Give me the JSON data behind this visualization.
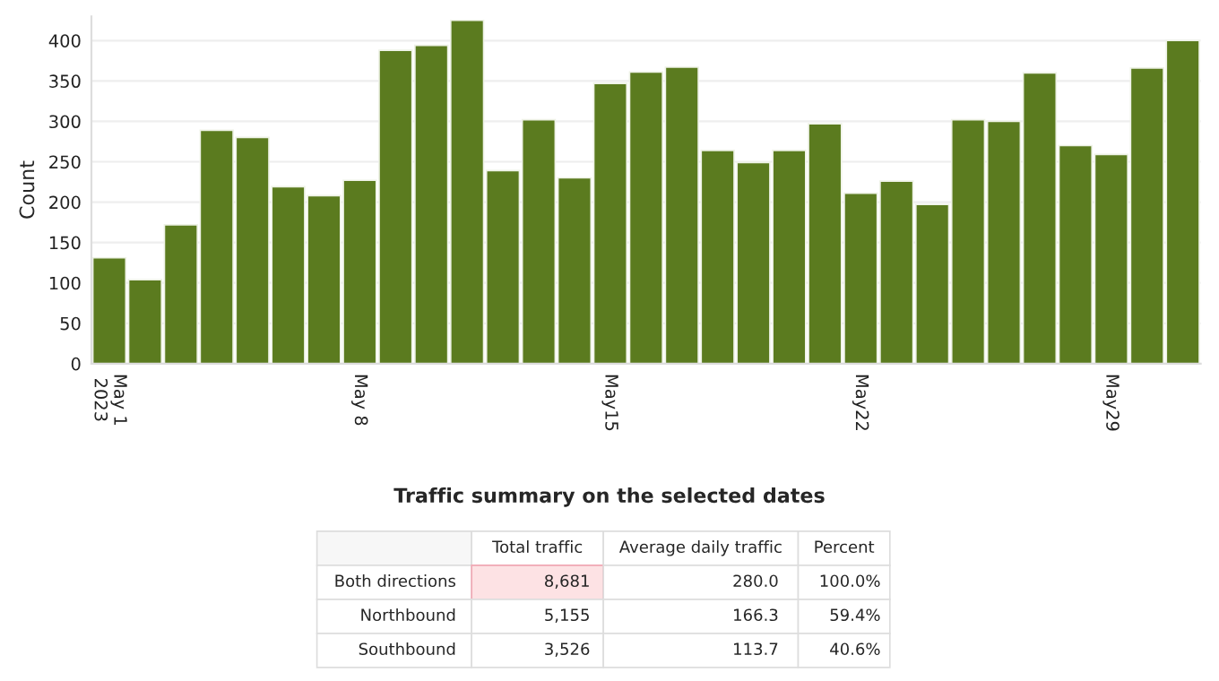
{
  "chart_data": [
    {
      "type": "bar",
      "ylabel": "Count",
      "color": "#5b7b1f",
      "x": [
        "2023-05-01",
        "2023-05-02",
        "2023-05-03",
        "2023-05-04",
        "2023-05-05",
        "2023-05-06",
        "2023-05-07",
        "2023-05-08",
        "2023-05-09",
        "2023-05-10",
        "2023-05-11",
        "2023-05-12",
        "2023-05-13",
        "2023-05-14",
        "2023-05-15",
        "2023-05-16",
        "2023-05-17",
        "2023-05-18",
        "2023-05-19",
        "2023-05-20",
        "2023-05-21",
        "2023-05-22",
        "2023-05-23",
        "2023-05-24",
        "2023-05-25",
        "2023-05-26",
        "2023-05-27",
        "2023-05-28",
        "2023-05-29",
        "2023-05-30",
        "2023-05-31"
      ],
      "values": [
        131,
        104,
        172,
        289,
        280,
        219,
        208,
        227,
        388,
        394,
        425,
        239,
        302,
        230,
        347,
        361,
        367,
        264,
        249,
        264,
        297,
        211,
        226,
        197,
        302,
        300,
        360,
        270,
        259,
        366,
        400
      ],
      "xlim": [
        "2023-04-30T12:00",
        "2023-05-31T12:00"
      ],
      "xticks": [
        {
          "value": "2023-05-01",
          "label": "May 1\n2023"
        },
        {
          "value": "2023-05-08",
          "label": "May 8"
        },
        {
          "value": "2023-05-15",
          "label": "May15"
        },
        {
          "value": "2023-05-22",
          "label": "May22"
        },
        {
          "value": "2023-05-29",
          "label": "May29"
        }
      ],
      "ylim": [
        0,
        430
      ],
      "yticks": [
        0,
        50,
        100,
        150,
        200,
        250,
        300,
        350,
        400
      ],
      "grid": "y"
    },
    {
      "type": "other",
      "title": "Traffic summary on the selected dates",
      "categories": [
        null,
        "Total traffic",
        "Average daily traffic",
        "Percent"
      ],
      "y_categories": [
        "Both directions",
        "Northbound",
        "Southbound"
      ],
      "cell_labels": [
        [
          "8,681",
          "280.0",
          "100.0%"
        ],
        [
          "5,155",
          "166.3",
          "59.4%"
        ],
        [
          "3,526",
          "113.7",
          "40.6%"
        ]
      ]
    }
  ]
}
